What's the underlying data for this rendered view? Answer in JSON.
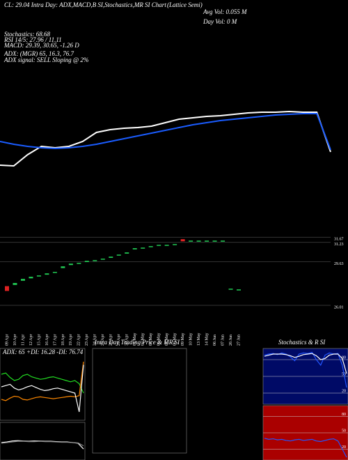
{
  "chart_data": [
    {
      "type": "line",
      "annotations": [
        "CL: 29.04 Intra Day: ADX,MACD,B SI,Stochastics,MR SI Chart",
        "(Lattice Semi)",
        "Stochastics: 68.68",
        "RSI 14/5: 27.96 / 11.11",
        "MACD: 29.39, 30.65, -1.26 D",
        "ADX: (MGR) 65, 16.3, 76.7",
        "ADX signal: SELL Sloping @ 2%",
        "Avg Vol: 0.055 M",
        "Day Vol: 0 M"
      ],
      "ylim": [
        26,
        32
      ],
      "series": [
        {
          "color": "#ffffff",
          "values": [
            26.78,
            26.72,
            27.68,
            28.4,
            28.28,
            28.4,
            28.82,
            29.6,
            29.84,
            29.96,
            30.02,
            30.14,
            30.44,
            30.74,
            30.86,
            30.98,
            31.04,
            31.16,
            31.28,
            31.34,
            31.34,
            31.4,
            31.34,
            31.34,
            27.92
          ]
        },
        {
          "color": "#1a5cff",
          "values": [
            28.82,
            28.58,
            28.4,
            28.28,
            28.22,
            28.28,
            28.4,
            28.58,
            28.82,
            29.06,
            29.3,
            29.54,
            29.78,
            30.02,
            30.26,
            30.44,
            30.62,
            30.74,
            30.86,
            30.98,
            31.1,
            31.16,
            31.22,
            31.22,
            28.1
          ]
        }
      ]
    },
    {
      "type": "candlestick",
      "categories": [
        "09 Apr",
        "10 Apr",
        "11 Apr",
        "12 Apr",
        "15 Apr",
        "16 Apr",
        "17 Apr",
        "18 Apr",
        "19 Apr",
        "22 Apr",
        "23 Apr",
        "24 Apr",
        "25 Apr",
        "26 Apr",
        "29 Apr",
        "30 Apr",
        "01 May",
        "02 May",
        "03 May",
        "06 May",
        "07 May",
        "08 May",
        "09 May",
        "10 May",
        "13 May",
        "14 May",
        "06 Jun",
        "07 Jun",
        "26 Jun",
        "27 Jun"
      ],
      "open": [
        27.6,
        27.7,
        28.05,
        28.25,
        28.4,
        28.55,
        28.7,
        29.1,
        29.35,
        29.45,
        29.6,
        29.7,
        29.8,
        29.95,
        30.15,
        30.3,
        30.65,
        30.75,
        30.85,
        30.95,
        30.98,
        31.05,
        31.5,
        31.3,
        31.35,
        31.33,
        31.35,
        31.34,
        27.32,
        27.28
      ],
      "close": [
        27.2,
        27.86,
        28.2,
        28.38,
        28.49,
        28.66,
        28.78,
        29.24,
        29.47,
        29.53,
        29.7,
        29.76,
        29.88,
        30.05,
        30.22,
        30.4,
        30.75,
        30.8,
        30.92,
        31.03,
        31.03,
        31.09,
        31.32,
        31.38,
        31.38,
        31.38,
        31.38,
        31.38,
        27.39,
        27.33
      ],
      "up_color": "#22cc55",
      "down_color": "#dd2222",
      "ylim": [
        25,
        32
      ],
      "yticks": [
        31.67,
        31.23,
        29.63,
        26.01
      ]
    },
    {
      "type": "line",
      "title": "ADX: 65 +DI: 16.28 -DI: 76.74",
      "ylim": [
        0,
        100
      ],
      "series": [
        {
          "color": "#22dd22",
          "values": [
            70,
            72,
            65,
            60,
            62,
            68,
            70,
            66,
            64,
            62,
            63,
            65,
            66,
            64,
            62,
            60,
            58,
            60,
            55,
            40
          ]
        },
        {
          "color": "#ff8800",
          "values": [
            30,
            28,
            32,
            35,
            34,
            30,
            29,
            31,
            33,
            34,
            33,
            32,
            31,
            32,
            33,
            34,
            35,
            34,
            36,
            90
          ]
        },
        {
          "color": "#ffffff",
          "values": [
            50,
            52,
            54,
            48,
            45,
            47,
            50,
            52,
            49,
            46,
            44,
            45,
            47,
            48,
            46,
            44,
            42,
            40,
            10,
            85
          ]
        }
      ]
    },
    {
      "type": "line",
      "ylim": [
        0,
        100
      ],
      "series": [
        {
          "color": "#ffffff",
          "values": [
            50,
            52,
            55,
            56,
            55,
            54,
            55,
            55,
            54,
            54,
            53,
            52,
            52,
            50,
            48,
            30
          ]
        },
        {
          "color": "#888888",
          "values": [
            48,
            50,
            52,
            54,
            54,
            53,
            53,
            54,
            53,
            53,
            52,
            51,
            51,
            50,
            49,
            40
          ]
        }
      ]
    },
    {
      "type": "line",
      "title": "Intra Day Trading Price & MR SI",
      "series": []
    },
    {
      "type": "line",
      "title": "Stochastics & R SI",
      "ylim": [
        0,
        100
      ],
      "yticks": [
        80,
        50,
        20
      ],
      "background": "#000a66",
      "series": [
        {
          "color": "#2255ff",
          "values": [
            88,
            90,
            91,
            89,
            92,
            90,
            85,
            78,
            90,
            92,
            91,
            93,
            80,
            70,
            88,
            92,
            90,
            91,
            70,
            30
          ]
        },
        {
          "color": "#ffffff",
          "values": [
            86,
            88,
            90,
            90,
            90,
            89,
            87,
            84,
            86,
            89,
            90,
            91,
            87,
            80,
            82,
            88,
            90,
            90,
            82,
            55
          ]
        }
      ]
    },
    {
      "type": "line",
      "ylim": [
        0,
        100
      ],
      "yticks": [
        80,
        50,
        20
      ],
      "background": "#aa0000",
      "series": [
        {
          "color": "#2255ff",
          "values": [
            40,
            38,
            39,
            37,
            38,
            36,
            35,
            37,
            38,
            36,
            37,
            38,
            35,
            34,
            36,
            38,
            39,
            35,
            20,
            5
          ]
        }
      ]
    }
  ]
}
